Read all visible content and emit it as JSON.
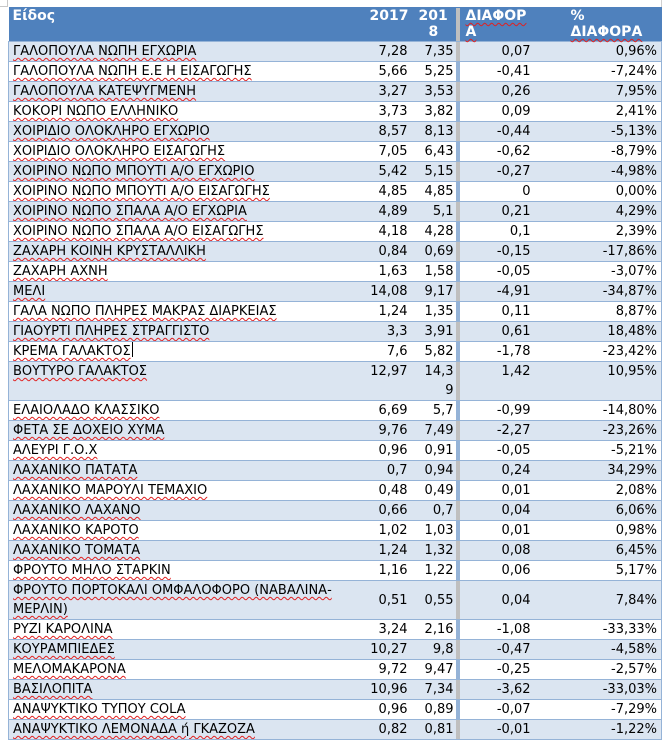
{
  "header": {
    "name": "Είδος",
    "y2017": "2017",
    "y2018": "201 8",
    "diff": "ΔΙΑΦΟΡΑ",
    "pct": "% ΔΙΑΦΟΡΑ"
  },
  "rows": [
    {
      "name": "ΓΑΛΟΠΟΥΛΑ ΝΩΠΗ  ΕΓΧΩΡΙΑ",
      "y2017": "7,28",
      "y2018": "7,35",
      "diff": "0,07",
      "pct": "0,96%"
    },
    {
      "name": "ΓΑΛΟΠΟΥΛΑ ΝΩΠΗ  Ε.Ε Η ΕΙΣΑΓΩΓΗΣ",
      "y2017": "5,66",
      "y2018": "5,25",
      "diff": "-0,41",
      "pct": "-7,24%"
    },
    {
      "name": "ΓΑΛΟΠΟΥΛΑ ΚΑΤΕΨΥΓΜΕΝΗ",
      "y2017": "3,27",
      "y2018": "3,53",
      "diff": "0,26",
      "pct": "7,95%"
    },
    {
      "name": "ΚΟΚΟΡΙ ΝΩΠΟ ΕΛΛΗΝΙΚΟ",
      "y2017": "3,73",
      "y2018": "3,82",
      "diff": "0,09",
      "pct": "2,41%"
    },
    {
      "name": "ΧΟΙΡΙΔΙΟ ΟΛΟΚΛΗΡΟ ΕΓΧΩΡΙΟ",
      "y2017": "8,57",
      "y2018": "8,13",
      "diff": "-0,44",
      "pct": "-5,13%"
    },
    {
      "name": "ΧΟΙΡΙΔΙΟ ΟΛΟΚΛΗΡΟ ΕΙΣΑΓΩΓΗΣ",
      "y2017": "7,05",
      "y2018": "6,43",
      "diff": "-0,62",
      "pct": "-8,79%"
    },
    {
      "name": "ΧΟΙΡΙΝΟ ΝΩΠΟ ΜΠΟΥΤΙ Α/Ο ΕΓΧΩΡΙΟ",
      "y2017": "5,42",
      "y2018": "5,15",
      "diff": "-0,27",
      "pct": "-4,98%"
    },
    {
      "name": "ΧΟΙΡΙΝΟ ΝΩΠΟ ΜΠΟΥΤΙ Α/Ο ΕΙΣΑΓΩΓΗΣ",
      "y2017": "4,85",
      "y2018": "4,85",
      "diff": "0",
      "pct": "0,00%"
    },
    {
      "name": "ΧΟΙΡΙΝΟ ΝΩΠΟ ΣΠΑΛΑ Α/Ο  ΕΓΧΩΡΙΑ",
      "y2017": "4,89",
      "y2018": "5,1",
      "diff": "0,21",
      "pct": "4,29%"
    },
    {
      "name": "ΧΟΙΡΙΝΟ ΝΩΠΟ ΣΠΑΛΑ Α/Ο  ΕΙΣΑΓΩΓΗΣ",
      "y2017": "4,18",
      "y2018": "4,28",
      "diff": "0,1",
      "pct": "2,39%"
    },
    {
      "name": "ΖΑΧΑΡΗ ΚΟΙΝΗ ΚΡΥΣΤΑΛΛΙΚΗ",
      "y2017": "0,84",
      "y2018": "0,69",
      "diff": "-0,15",
      "pct": "-17,86%"
    },
    {
      "name": "ΖΑΧΑΡΗ ΑΧΝΗ",
      "y2017": "1,63",
      "y2018": "1,58",
      "diff": "-0,05",
      "pct": "-3,07%"
    },
    {
      "name": "ΜΕΛΙ",
      "y2017": "14,08",
      "y2018": "9,17",
      "diff": "-4,91",
      "pct": "-34,87%"
    },
    {
      "name": "ΓΑΛΑ ΝΩΠΟ ΠΛΗΡΕΣ ΜΑΚΡΑΣ ΔΙΑΡΚΕΙΑΣ",
      "y2017": "1,24",
      "y2018": "1,35",
      "diff": "0,11",
      "pct": "8,87%"
    },
    {
      "name": "ΓΙΑΟΥΡΤΙ ΠΛΗΡΕΣ ΣΤΡΑΓΓΙΣΤΟ",
      "y2017": "3,3",
      "y2018": "3,91",
      "diff": "0,61",
      "pct": "18,48%"
    },
    {
      "name": "ΚΡΕΜΑ ΓΑΛΑΚΤΟΣ",
      "y2017": "7,6",
      "y2018": "5,82",
      "diff": "-1,78",
      "pct": "-23,42%"
    },
    {
      "name": "ΒΟΥΤΥΡΟ ΓΑΛΑΚΤΟΣ",
      "y2017": "12,97",
      "y2018": "14,3 9",
      "diff": "1,42",
      "pct": "10,95%"
    },
    {
      "name": "ΕΛΑΙΟΛΑΔΟ ΚΛΑΣΣΙΚΟ",
      "y2017": "6,69",
      "y2018": "5,7",
      "diff": "-0,99",
      "pct": "-14,80%"
    },
    {
      "name": "ΦΕΤΑ ΣΕ ΔΟΧΕΙΟ ΧΥΜΑ",
      "y2017": "9,76",
      "y2018": "7,49",
      "diff": "-2,27",
      "pct": "-23,26%"
    },
    {
      "name": "ΑΛΕΥΡΙ Γ.Ο.Χ",
      "y2017": "0,96",
      "y2018": "0,91",
      "diff": "-0,05",
      "pct": "-5,21%"
    },
    {
      "name": "ΛΑΧΑΝΙΚΟ ΠΑΤΑΤΑ",
      "y2017": "0,7",
      "y2018": "0,94",
      "diff": "0,24",
      "pct": "34,29%"
    },
    {
      "name": "ΛΑΧΑΝΙΚΟ ΜΑΡΟΥΛΙ ΤΕΜΑΧΙΟ",
      "y2017": "0,48",
      "y2018": "0,49",
      "diff": "0,01",
      "pct": "2,08%"
    },
    {
      "name": "ΛΑΧΑΝΙΚΟ ΛΑΧΑΝΟ",
      "y2017": "0,66",
      "y2018": "0,7",
      "diff": "0,04",
      "pct": "6,06%"
    },
    {
      "name": "ΛΑΧΑΝΙΚΟ ΚΑΡΟΤΟ",
      "y2017": "1,02",
      "y2018": "1,03",
      "diff": "0,01",
      "pct": "0,98%"
    },
    {
      "name": "ΛΑΧΑΝΙΚΟ ΤΟΜΑΤΑ",
      "y2017": "1,24",
      "y2018": "1,32",
      "diff": "0,08",
      "pct": "6,45%"
    },
    {
      "name": "ΦΡΟΥΤΟ ΜΗΛΟ ΣΤΑΡΚΙΝ",
      "y2017": "1,16",
      "y2018": "1,22",
      "diff": "0,06",
      "pct": "5,17%"
    },
    {
      "name": "ΦΡΟΥΤΟ ΠΟΡΤΟΚΑΛΙ ΟΜΦΑΛΟΦΟΡΟ (ΝΑΒΑΛΙΝΑ-ΜΕΡΛΙΝ)",
      "y2017": "0,51",
      "y2018": "0,55",
      "diff": "0,04",
      "pct": "7,84%"
    },
    {
      "name": "ΡΥΖΙ ΚΑΡΟΛΙΝΑ",
      "y2017": "3,24",
      "y2018": "2,16",
      "diff": "-1,08",
      "pct": "-33,33%"
    },
    {
      "name": "ΚΟΥΡΑΜΠΙΕΔΕΣ",
      "y2017": "10,27",
      "y2018": "9,8",
      "diff": "-0,47",
      "pct": "-4,58%"
    },
    {
      "name": "ΜΕΛΟΜΑΚΑΡΟΝΑ",
      "y2017": "9,72",
      "y2018": "9,47",
      "diff": "-0,25",
      "pct": "-2,57%"
    },
    {
      "name": "ΒΑΣΙΛΟΠΙΤΑ",
      "y2017": "10,96",
      "y2018": "7,34",
      "diff": "-3,62",
      "pct": "-33,03%"
    },
    {
      "name": "ΑΝΑΨΥΚΤΙΚΟ ΤΥΠΟΥ COLA",
      "y2017": "0,96",
      "y2018": "0,89",
      "diff": "-0,07",
      "pct": "-7,29%"
    },
    {
      "name": "ΑΝΑΨΥΚΤΙΚΟ ΛΕΜΟΝΑΔΑ ή ΓΚΑΖΟΖΑ",
      "y2017": "0,82",
      "y2018": "0,81",
      "diff": "-0,01",
      "pct": "-1,22%"
    }
  ],
  "colors": {
    "header_bg": "#4f81bd",
    "band_bg": "#dbe5f1",
    "border": "#95b3d7",
    "separator": "#bfbfbf",
    "spellcheck": "#e02020"
  }
}
